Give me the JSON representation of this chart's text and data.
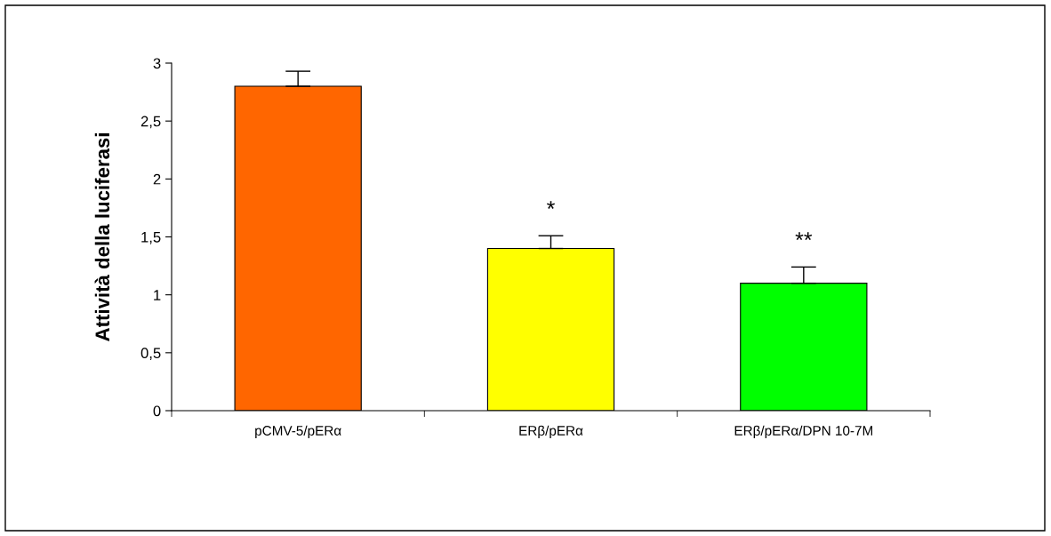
{
  "chart_data": {
    "type": "bar",
    "ylabel": "Attività della luciferasi",
    "categories": [
      "pCMV-5/pERα",
      "ERβ/pERα",
      "ERβ/pERα/DPN 10-7M"
    ],
    "values": [
      2.8,
      1.4,
      1.1
    ],
    "colors": [
      "#ff6600",
      "#ffff00",
      "#00ff00"
    ],
    "errors": [
      [
        2.8,
        2.93
      ],
      [
        1.4,
        1.51
      ],
      [
        1.1,
        1.24
      ]
    ],
    "ylim": [
      0,
      3
    ],
    "yticks": [
      0,
      {
        "value": 0.5,
        "label": "0,5"
      },
      1,
      {
        "value": 1.5,
        "label": "1,5"
      },
      2,
      {
        "value": 2.5,
        "label": "2,5"
      },
      3
    ],
    "annotations": [
      {
        "text": "*",
        "x": "ERβ/pERα",
        "y": 1.51
      },
      {
        "text": "**",
        "x": "ERβ/pERα/DPN 10-7M",
        "y": 1.24
      }
    ],
    "grid": false,
    "legend": false
  }
}
